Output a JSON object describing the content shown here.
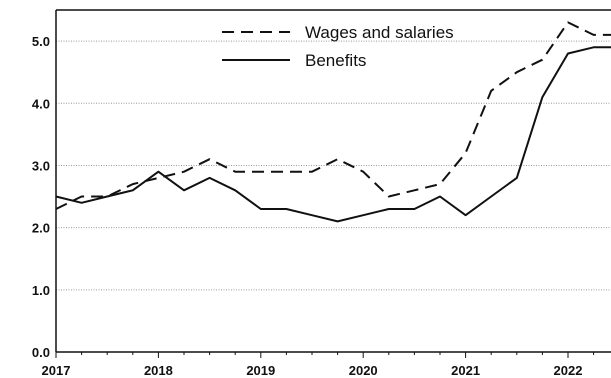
{
  "chart_data": {
    "type": "line",
    "title": "",
    "xlabel": "",
    "ylabel": "",
    "x_ticks": [
      "2017",
      "2018",
      "2019",
      "2020",
      "2021",
      "2022"
    ],
    "xlim": [
      2017,
      2022.42
    ],
    "ylim": [
      0,
      5.5
    ],
    "y_ticks": [
      "0.0",
      "1.0",
      "2.0",
      "3.0",
      "4.0",
      "5.0"
    ],
    "grid": "horizontal",
    "legend_position": "top-center",
    "series": [
      {
        "name": "Wages and salaries",
        "style": "dashed",
        "color": "#111111",
        "x": [
          2017.0,
          2017.25,
          2017.5,
          2017.75,
          2018.0,
          2018.25,
          2018.5,
          2018.75,
          2019.0,
          2019.25,
          2019.5,
          2019.75,
          2020.0,
          2020.25,
          2020.5,
          2020.75,
          2021.0,
          2021.25,
          2021.5,
          2021.75,
          2022.0,
          2022.25,
          2022.42
        ],
        "y": [
          2.3,
          2.5,
          2.5,
          2.7,
          2.8,
          2.9,
          3.1,
          2.9,
          2.9,
          2.9,
          2.9,
          3.1,
          2.9,
          2.5,
          2.6,
          2.7,
          3.2,
          4.2,
          4.5,
          4.7,
          5.3,
          5.1,
          5.1
        ]
      },
      {
        "name": "Benefits",
        "style": "solid",
        "color": "#111111",
        "x": [
          2017.0,
          2017.25,
          2017.5,
          2017.75,
          2018.0,
          2018.25,
          2018.5,
          2018.75,
          2019.0,
          2019.25,
          2019.5,
          2019.75,
          2020.0,
          2020.25,
          2020.5,
          2020.75,
          2021.0,
          2021.25,
          2021.5,
          2021.75,
          2022.0,
          2022.25,
          2022.42
        ],
        "y": [
          2.5,
          2.4,
          2.5,
          2.6,
          2.9,
          2.6,
          2.8,
          2.6,
          2.3,
          2.3,
          2.2,
          2.1,
          2.2,
          2.3,
          2.3,
          2.5,
          2.2,
          2.5,
          2.8,
          4.1,
          4.8,
          4.9,
          4.9
        ]
      }
    ]
  }
}
